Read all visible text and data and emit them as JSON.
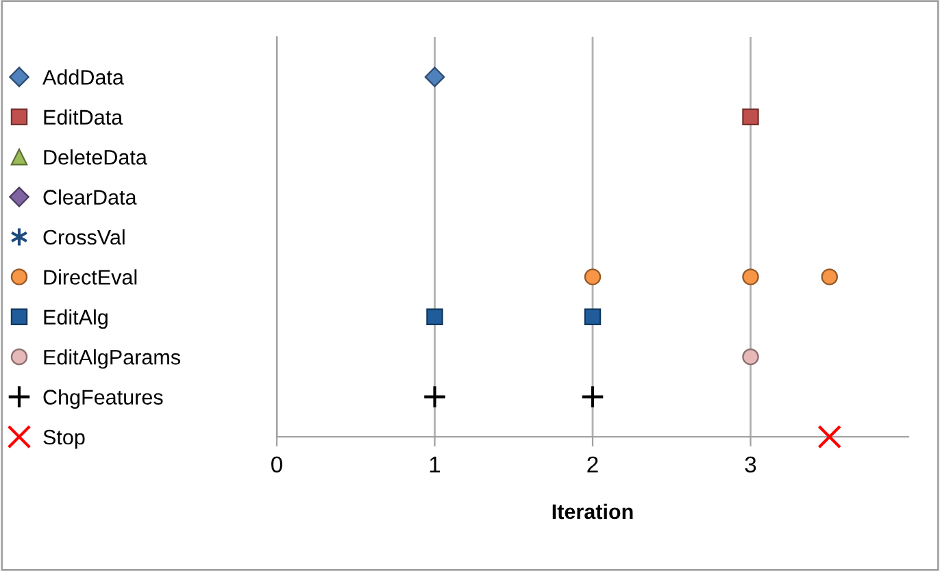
{
  "chart_data": {
    "type": "scatter",
    "orientation": "horizontal",
    "xlabel": "Iteration",
    "xlim": [
      0,
      4
    ],
    "xticks": [
      0,
      1,
      2,
      3
    ],
    "grid": "x",
    "categories": [
      "AddData",
      "EditData",
      "DeleteData",
      "ClearData",
      "CrossVal",
      "DirectEval",
      "EditAlg",
      "EditAlgParams",
      "ChgFeatures",
      "Stop"
    ],
    "series": [
      {
        "color": "#4f81bd",
        "marker": "diamond",
        "values": [
          1,
          null,
          null,
          null,
          null,
          null,
          null,
          null,
          null,
          null
        ]
      },
      {
        "color": "#c0504d",
        "marker": "square",
        "values": [
          null,
          3,
          null,
          null,
          null,
          null,
          null,
          null,
          null,
          null
        ]
      },
      {
        "color": "#9bbb59",
        "marker": "triangle",
        "values": [
          null,
          null,
          null,
          null,
          null,
          null,
          null,
          null,
          null,
          null
        ]
      },
      {
        "color": "#8064a2",
        "marker": "diamond",
        "values": [
          null,
          null,
          null,
          null,
          null,
          null,
          null,
          null,
          null,
          null
        ]
      },
      {
        "color": "#1f497d",
        "marker": "star",
        "values": [
          null,
          null,
          null,
          null,
          null,
          null,
          null,
          null,
          null,
          null
        ]
      },
      {
        "color": "#f79646",
        "marker": "circle",
        "values": [
          null,
          null,
          null,
          null,
          null,
          2,
          null,
          null,
          null,
          null
        ]
      },
      {
        "color": "#1f5c99",
        "marker": "square",
        "values": [
          null,
          null,
          null,
          null,
          null,
          null,
          1,
          null,
          null,
          null
        ]
      },
      {
        "color": "#e6b9b8",
        "marker": "circle",
        "values": [
          null,
          null,
          null,
          null,
          null,
          null,
          null,
          3,
          null,
          null
        ]
      },
      {
        "color": "#000000",
        "marker": "plus",
        "values": [
          null,
          null,
          null,
          null,
          null,
          null,
          null,
          null,
          1,
          null
        ]
      },
      {
        "color": "#ff0000",
        "marker": "cross",
        "values": [
          null,
          null,
          null,
          null,
          null,
          null,
          null,
          null,
          null,
          3.5
        ]
      },
      {
        "color": "#f79646",
        "marker": "circle",
        "values": [
          null,
          null,
          null,
          null,
          null,
          3,
          null,
          null,
          null,
          null
        ]
      },
      {
        "color": "#f79646",
        "marker": "circle",
        "values": [
          null,
          null,
          null,
          null,
          null,
          3.5,
          null,
          null,
          null,
          null
        ]
      },
      {
        "color": "#1f5c99",
        "marker": "square",
        "values": [
          null,
          null,
          null,
          null,
          null,
          null,
          2,
          null,
          null,
          null
        ]
      },
      {
        "color": "#000000",
        "marker": "plus",
        "values": [
          null,
          null,
          null,
          null,
          null,
          null,
          null,
          null,
          2,
          null
        ]
      }
    ]
  }
}
